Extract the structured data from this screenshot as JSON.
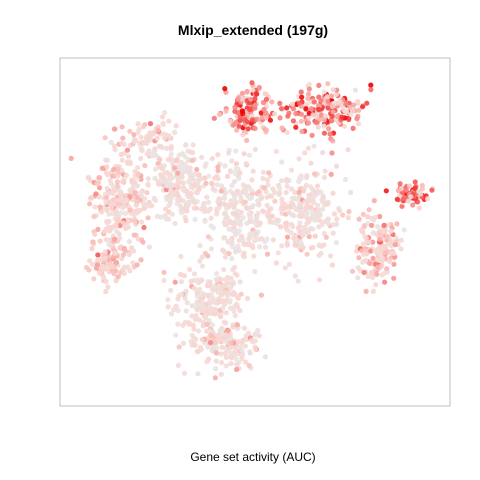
{
  "chart_data": {
    "type": "scatter",
    "title": "Mlxip_extended (197g)",
    "xlabel": "Gene set activity (AUC)",
    "ylabel": "",
    "grid": false,
    "legend": "none",
    "axes_ticks": false,
    "color_scale": {
      "low": "#E6E6E6",
      "mid": "#FAD4CF",
      "high": "#EE0000",
      "encodes": "Gene set activity (AUC)"
    }
  }
}
